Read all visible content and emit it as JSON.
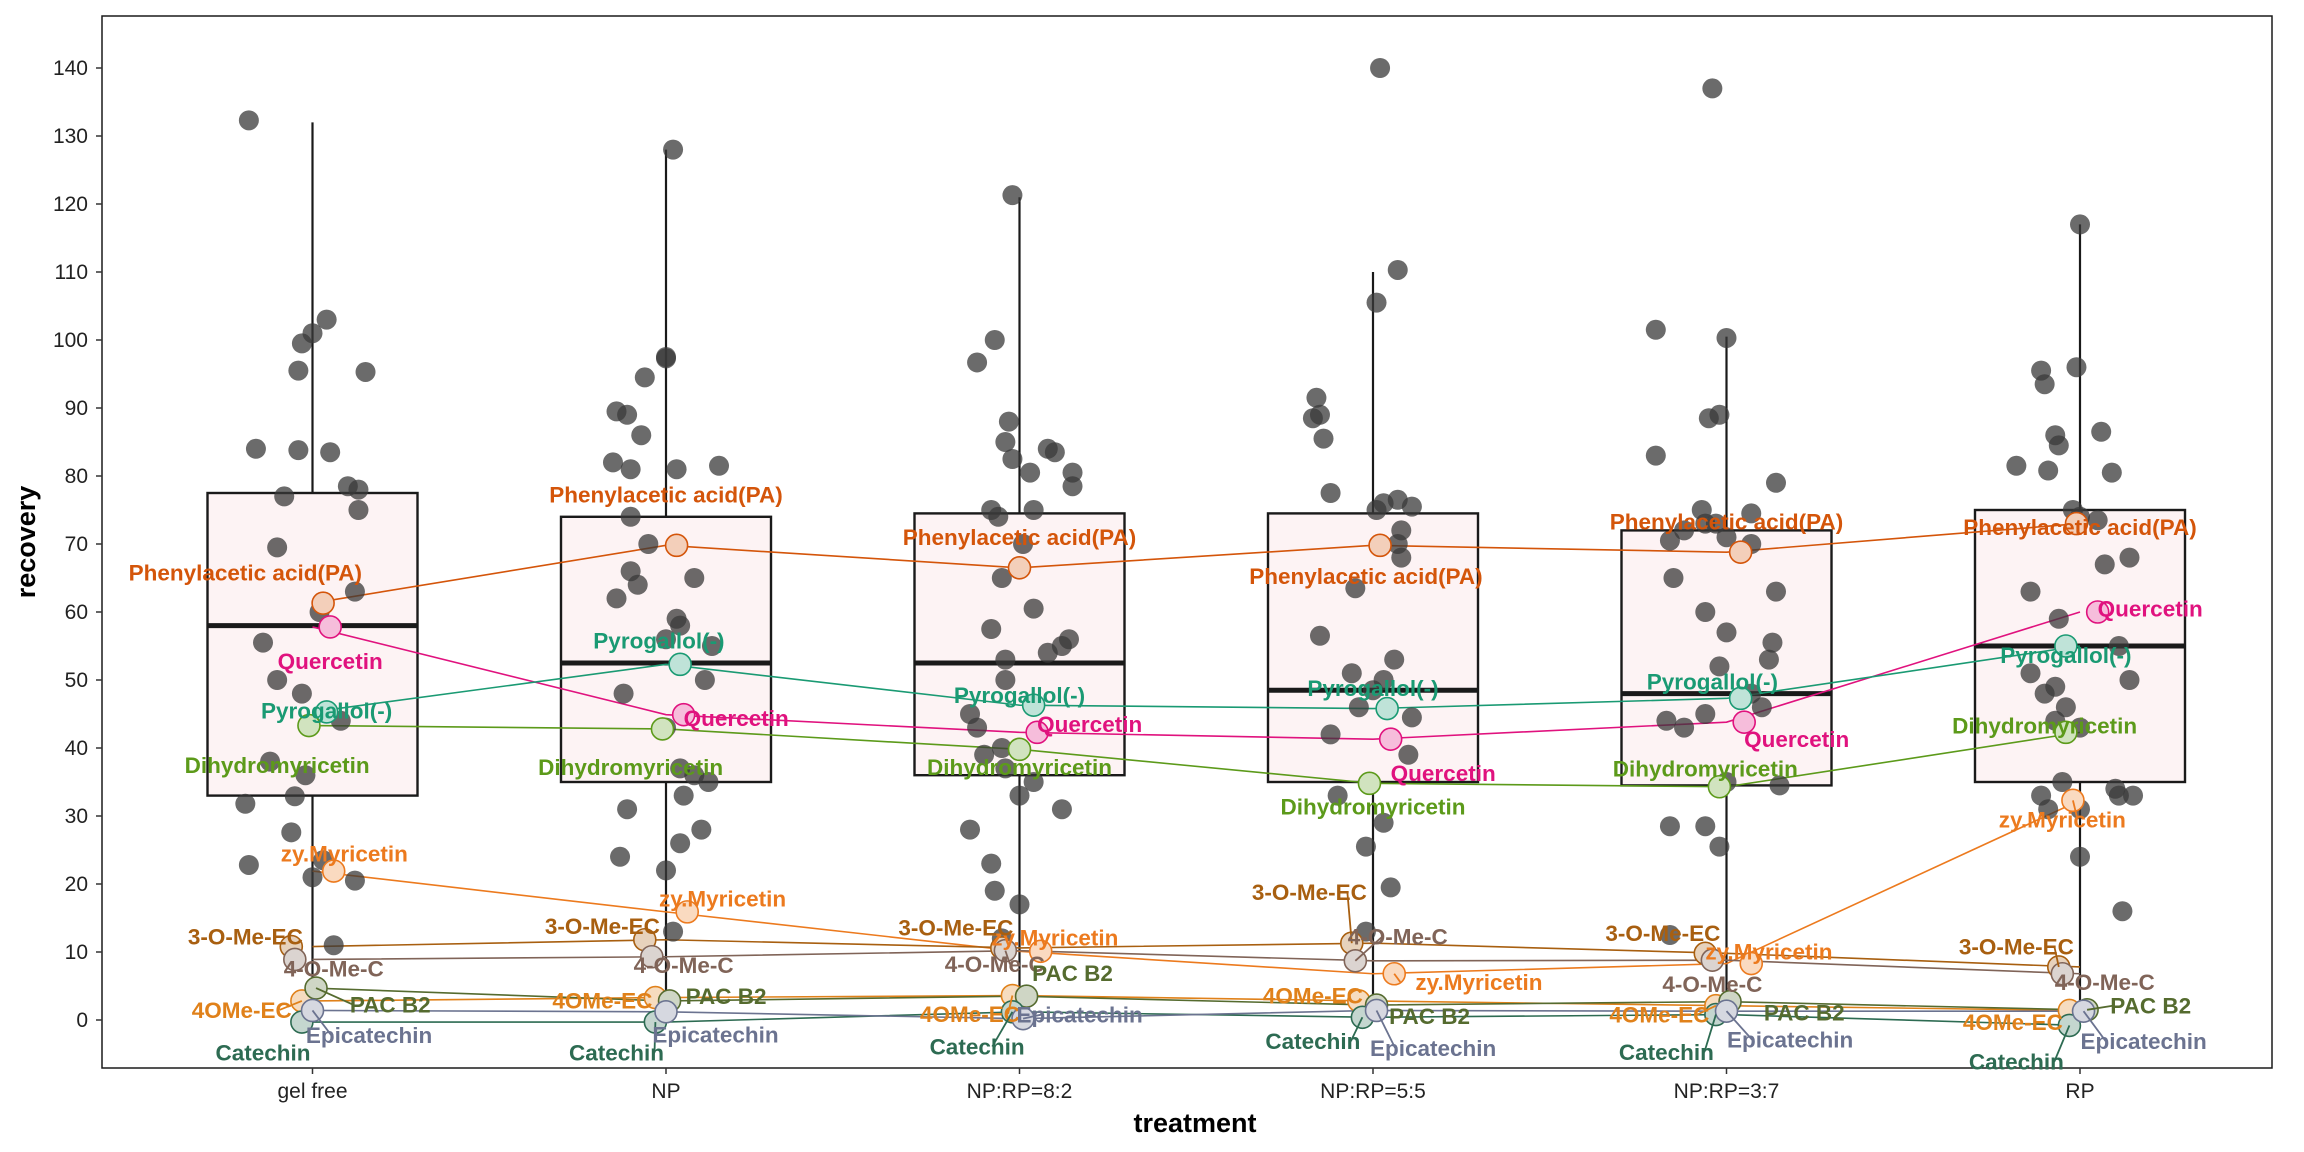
{
  "chart_data": {
    "type": "box",
    "xlabel": "treatment",
    "ylabel": "recovery",
    "categories": [
      "gel free",
      "NP",
      "NP:RP=8:2",
      "NP:RP=5:5",
      "NP:RP=3:7",
      "RP"
    ],
    "ylim": [
      -7,
      147
    ],
    "yticks": [
      0,
      10,
      20,
      30,
      40,
      50,
      60,
      70,
      80,
      90,
      100,
      110,
      120,
      130,
      140
    ],
    "grid": false,
    "legend": "none",
    "box_fill": "#fdf3f4",
    "box_stroke": "#1a1a1a",
    "point_color": "#3a3a3a",
    "boxes": [
      {
        "category": "gel free",
        "q1": 33,
        "median": 58,
        "q3": 77.5,
        "whisker_low": 0,
        "whisker_high": 132
      },
      {
        "category": "NP",
        "q1": 35,
        "median": 52.5,
        "q3": 74,
        "whisker_low": 0,
        "whisker_high": 128
      },
      {
        "category": "NP:RP=8:2",
        "q1": 36,
        "median": 52.5,
        "q3": 74.5,
        "whisker_low": 0,
        "whisker_high": 121
      },
      {
        "category": "NP:RP=5:5",
        "q1": 35,
        "median": 48.5,
        "q3": 74.5,
        "whisker_low": 0,
        "whisker_high": 110
      },
      {
        "category": "NP:RP=3:7",
        "q1": 34.5,
        "median": 48,
        "q3": 72,
        "whisker_low": 0,
        "whisker_high": 100.5
      },
      {
        "category": "RP",
        "q1": 35,
        "median": 55,
        "q3": 75,
        "whisker_low": 0,
        "whisker_high": 117
      }
    ],
    "points": [
      [
        [
          -0.18,
          132.3
        ],
        [
          0.04,
          103
        ],
        [
          0.0,
          101
        ],
        [
          -0.03,
          99.5
        ],
        [
          0.15,
          95.3
        ],
        [
          -0.04,
          95.5
        ],
        [
          -0.16,
          84
        ],
        [
          -0.04,
          83.8
        ],
        [
          0.05,
          83.5
        ],
        [
          0.1,
          78.5
        ],
        [
          0.13,
          78
        ],
        [
          -0.08,
          77
        ],
        [
          0.13,
          75
        ],
        [
          -0.1,
          69.5
        ],
        [
          -0.14,
          55.5
        ],
        [
          0.12,
          63
        ],
        [
          -0.03,
          48
        ],
        [
          -0.19,
          31.8
        ],
        [
          -0.05,
          32.9
        ],
        [
          -0.06,
          27.6
        ],
        [
          -0.18,
          22.8
        ],
        [
          0.12,
          20.5
        ],
        [
          0.0,
          21
        ],
        [
          0.03,
          23.5
        ],
        [
          0.06,
          11
        ],
        [
          -0.12,
          38
        ],
        [
          -0.02,
          36
        ],
        [
          0.08,
          44
        ],
        [
          0.02,
          60
        ],
        [
          -0.1,
          50
        ]
      ],
      [
        [
          0.02,
          128
        ],
        [
          0.0,
          97.5
        ],
        [
          0.0,
          97.3
        ],
        [
          -0.06,
          94.5
        ],
        [
          -0.14,
          89.5
        ],
        [
          -0.11,
          89
        ],
        [
          -0.07,
          86
        ],
        [
          -0.15,
          82
        ],
        [
          -0.1,
          81
        ],
        [
          0.03,
          81
        ],
        [
          0.15,
          81.5
        ],
        [
          -0.1,
          74
        ],
        [
          -0.05,
          70
        ],
        [
          -0.1,
          66
        ],
        [
          0.08,
          65
        ],
        [
          -0.14,
          62
        ],
        [
          -0.08,
          64
        ],
        [
          0.03,
          59
        ],
        [
          0.04,
          58
        ],
        [
          0.0,
          56
        ],
        [
          0.13,
          55
        ],
        [
          0.11,
          50
        ],
        [
          -0.12,
          48
        ],
        [
          0.0,
          43
        ],
        [
          0.04,
          37
        ],
        [
          0.08,
          36
        ],
        [
          0.12,
          35
        ],
        [
          0.05,
          33
        ],
        [
          -0.11,
          31
        ],
        [
          -0.13,
          24
        ],
        [
          0.04,
          26
        ],
        [
          0.1,
          28
        ],
        [
          0.0,
          22
        ],
        [
          0.02,
          13
        ]
      ],
      [
        [
          -0.02,
          121.3
        ],
        [
          -0.07,
          100
        ],
        [
          -0.12,
          96.7
        ],
        [
          0.08,
          84
        ],
        [
          0.1,
          83.5
        ],
        [
          -0.04,
          85
        ],
        [
          -0.03,
          88
        ],
        [
          -0.02,
          82.5
        ],
        [
          0.15,
          80.5
        ],
        [
          0.15,
          78.5
        ],
        [
          0.03,
          80.5
        ],
        [
          0.04,
          75
        ],
        [
          -0.08,
          75
        ],
        [
          -0.06,
          74
        ],
        [
          0.01,
          70
        ],
        [
          -0.05,
          65
        ],
        [
          0.04,
          60.5
        ],
        [
          -0.08,
          57.5
        ],
        [
          0.14,
          56
        ],
        [
          0.08,
          54
        ],
        [
          0.12,
          55
        ],
        [
          -0.04,
          50
        ],
        [
          -0.14,
          45
        ],
        [
          -0.12,
          43
        ],
        [
          -0.05,
          40
        ],
        [
          -0.1,
          39
        ],
        [
          -0.04,
          37
        ],
        [
          0.04,
          35
        ],
        [
          0.0,
          33
        ],
        [
          0.12,
          31
        ],
        [
          -0.14,
          28
        ],
        [
          -0.08,
          23
        ],
        [
          -0.07,
          19
        ],
        [
          -0.05,
          12
        ],
        [
          0.0,
          17
        ],
        [
          -0.04,
          53
        ]
      ],
      [
        [
          0.02,
          140
        ],
        [
          0.07,
          110.3
        ],
        [
          0.01,
          105.5
        ],
        [
          -0.16,
          91.5
        ],
        [
          -0.15,
          89
        ],
        [
          -0.17,
          88.5
        ],
        [
          -0.14,
          85.5
        ],
        [
          -0.12,
          77.5
        ],
        [
          0.07,
          76.5
        ],
        [
          0.03,
          76
        ],
        [
          0.01,
          75
        ],
        [
          0.11,
          75.5
        ],
        [
          0.07,
          70
        ],
        [
          0.08,
          68
        ],
        [
          0.08,
          72
        ],
        [
          -0.05,
          63.5
        ],
        [
          -0.15,
          56.5
        ],
        [
          0.06,
          53
        ],
        [
          -0.06,
          51
        ],
        [
          0.03,
          50
        ],
        [
          0.0,
          48.5
        ],
        [
          -0.04,
          46
        ],
        [
          0.11,
          44.5
        ],
        [
          -0.12,
          42
        ],
        [
          0.1,
          39
        ],
        [
          -0.1,
          33
        ],
        [
          0.03,
          29
        ],
        [
          -0.02,
          25.5
        ],
        [
          0.05,
          19.5
        ],
        [
          -0.02,
          13
        ]
      ],
      [
        [
          -0.04,
          137
        ],
        [
          -0.2,
          101.5
        ],
        [
          0.0,
          100.3
        ],
        [
          -0.02,
          89
        ],
        [
          -0.05,
          88.5
        ],
        [
          -0.2,
          83
        ],
        [
          0.14,
          79
        ],
        [
          -0.07,
          75
        ],
        [
          0.07,
          74.5
        ],
        [
          -0.06,
          73
        ],
        [
          -0.03,
          73
        ],
        [
          -0.12,
          72
        ],
        [
          -0.16,
          70.5
        ],
        [
          0.0,
          71
        ],
        [
          0.07,
          70
        ],
        [
          -0.15,
          65
        ],
        [
          0.14,
          63
        ],
        [
          -0.06,
          60
        ],
        [
          0.0,
          57
        ],
        [
          0.13,
          55.5
        ],
        [
          0.12,
          53
        ],
        [
          -0.02,
          52
        ],
        [
          0.07,
          48
        ],
        [
          0.1,
          46
        ],
        [
          -0.06,
          45
        ],
        [
          -0.17,
          44
        ],
        [
          -0.12,
          43
        ],
        [
          0.0,
          35
        ],
        [
          0.15,
          34.5
        ],
        [
          -0.16,
          28.5
        ],
        [
          -0.06,
          28.5
        ],
        [
          -0.02,
          25.5
        ],
        [
          -0.16,
          12.5
        ]
      ],
      [
        [
          0.0,
          117
        ],
        [
          -0.11,
          95.5
        ],
        [
          -0.01,
          96
        ],
        [
          -0.1,
          93.5
        ],
        [
          -0.07,
          86
        ],
        [
          0.06,
          86.5
        ],
        [
          -0.06,
          84.5
        ],
        [
          -0.18,
          81.5
        ],
        [
          0.09,
          80.5
        ],
        [
          -0.09,
          80.8
        ],
        [
          -0.02,
          75
        ],
        [
          0.0,
          74
        ],
        [
          0.05,
          73.5
        ],
        [
          0.14,
          68
        ],
        [
          0.07,
          67
        ],
        [
          -0.14,
          63
        ],
        [
          -0.06,
          59
        ],
        [
          0.11,
          55
        ],
        [
          -0.14,
          51
        ],
        [
          0.14,
          50
        ],
        [
          -0.07,
          49
        ],
        [
          -0.1,
          48
        ],
        [
          -0.04,
          46
        ],
        [
          -0.07,
          44
        ],
        [
          0.0,
          43
        ],
        [
          -0.05,
          35
        ],
        [
          -0.11,
          33
        ],
        [
          -0.09,
          31
        ],
        [
          0.0,
          31
        ],
        [
          0.15,
          33
        ],
        [
          0.1,
          34
        ],
        [
          0.11,
          33
        ],
        [
          0.0,
          24
        ],
        [
          0.12,
          16
        ]
      ]
    ],
    "series": [
      {
        "name": "Phenylacetic acid(PA)",
        "color": "#d4550a",
        "values": [
          61.3,
          69.8,
          66.5,
          69.8,
          68.8,
          73
        ]
      },
      {
        "name": "Quercetin",
        "color": "#e0127e",
        "values": [
          57.8,
          44.9,
          42.3,
          41.3,
          43.8,
          60
        ]
      },
      {
        "name": "Pyrogallol(-)",
        "color": "#1a9a73",
        "values": [
          45.3,
          52.3,
          46.3,
          45.8,
          47.3,
          55
        ]
      },
      {
        "name": "Dihydromyricetin",
        "color": "#5c9a1a",
        "values": [
          43.3,
          42.8,
          39.8,
          34.8,
          34.3,
          42.3
        ]
      },
      {
        "name": "zy.Myricetin",
        "color": "#ec7a1e",
        "values": [
          21.9,
          15.9,
          10.1,
          6.8,
          8.3,
          32.3
        ]
      },
      {
        "name": "3-O-Me-EC",
        "color": "#a85f10",
        "values": [
          10.8,
          11.8,
          10.6,
          11.3,
          9.8,
          7.8
        ]
      },
      {
        "name": "4-O-Me-C",
        "color": "#806458",
        "values": [
          8.9,
          9.3,
          10.2,
          8.7,
          8.8,
          6.8
        ]
      },
      {
        "name": "4OMe-EC",
        "color": "#e0811a",
        "values": [
          2.8,
          3.3,
          3.6,
          2.8,
          2.1,
          1.4
        ]
      },
      {
        "name": "PAC B2",
        "color": "#556b2f",
        "values": [
          4.7,
          2.8,
          3.5,
          2.2,
          2.7,
          1.5
        ]
      },
      {
        "name": "Catechin",
        "color": "#2d6b52",
        "values": [
          -0.3,
          -0.3,
          1.2,
          0.4,
          0.8,
          -0.8
        ]
      },
      {
        "name": "Epicatechin",
        "color": "#6b7390",
        "values": [
          1.4,
          1.2,
          0.2,
          1.4,
          1.3,
          1.3
        ]
      }
    ]
  }
}
